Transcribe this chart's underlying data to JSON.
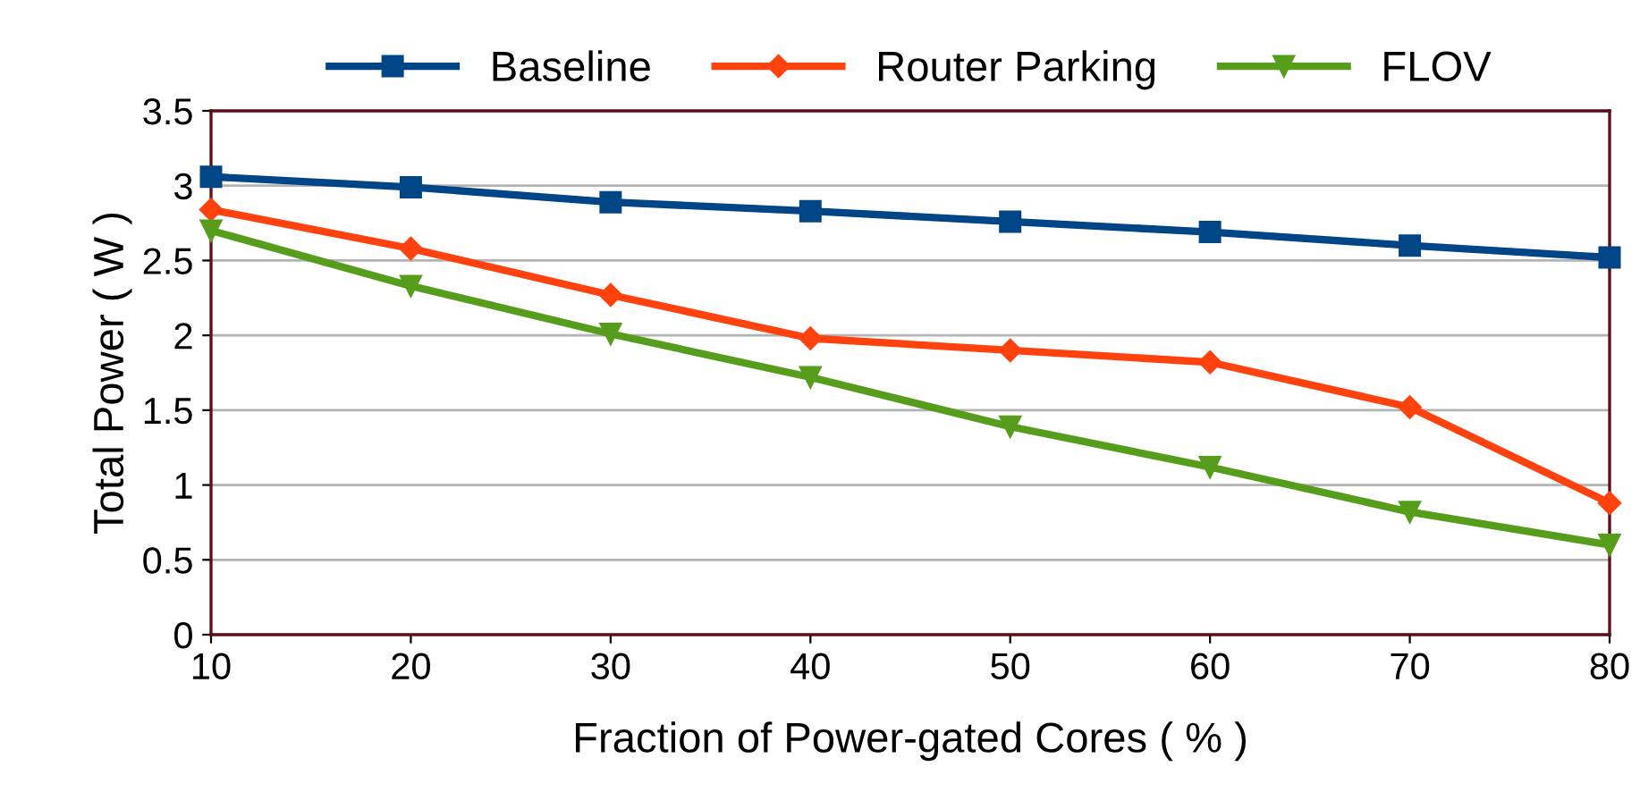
{
  "chart_data": {
    "type": "line",
    "xlabel": "Fraction of Power-gated Cores ( % )",
    "ylabel": "Total Power ( W )",
    "x": [
      10,
      20,
      30,
      40,
      50,
      60,
      70,
      80
    ],
    "series": [
      {
        "name": "Baseline",
        "color": "#004586",
        "marker": "square",
        "values": [
          3.06,
          2.99,
          2.89,
          2.83,
          2.76,
          2.69,
          2.6,
          2.52
        ]
      },
      {
        "name": "Router Parking",
        "color": "#ff420e",
        "marker": "diamond",
        "values": [
          2.84,
          2.58,
          2.27,
          1.98,
          1.9,
          1.82,
          1.52,
          0.88
        ]
      },
      {
        "name": "FLOV",
        "color": "#579d1c",
        "marker": "triangle",
        "values": [
          2.7,
          2.33,
          2.01,
          1.72,
          1.39,
          1.12,
          0.82,
          0.6
        ]
      }
    ],
    "xlim": [
      10,
      80
    ],
    "xticks": [
      10,
      20,
      30,
      40,
      50,
      60,
      70,
      80
    ],
    "ylim": [
      0,
      3.5
    ],
    "yticks": [
      0,
      0.5,
      1,
      1.5,
      2,
      2.5,
      3,
      3.5
    ],
    "grid": "y",
    "legend": "top",
    "line_style": "solid"
  }
}
